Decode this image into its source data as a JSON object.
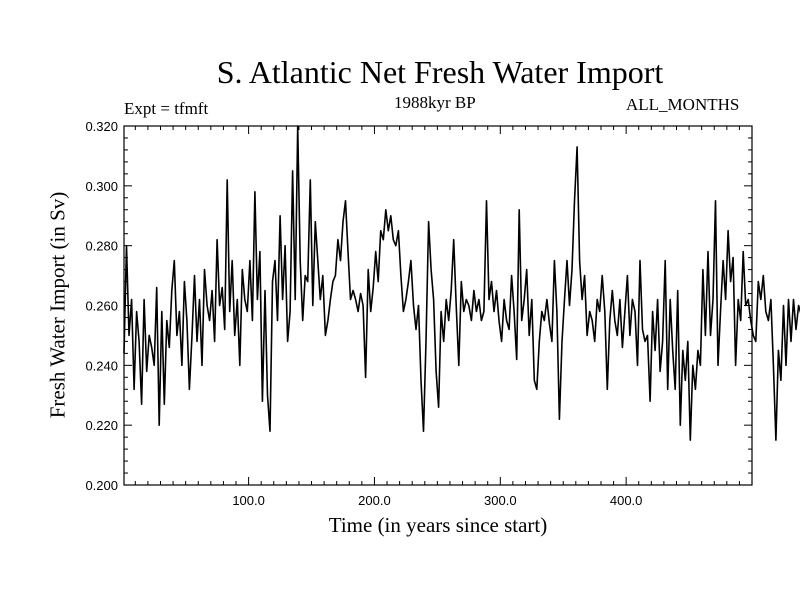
{
  "chart_data": {
    "type": "line",
    "title": "S. Atlantic Net Fresh Water Import",
    "subtitle": "1988kyr BP",
    "experiment_label": "Expt = tfmft",
    "period_label": "ALL_MONTHS",
    "xlabel": "Time (in years since start)",
    "ylabel": "Fresh Water Import (in Sv)",
    "xlim": [
      1,
      500
    ],
    "ylim": [
      0.2,
      0.32
    ],
    "x_ticks": [
      100,
      200,
      300,
      400
    ],
    "x_tick_labels": [
      "100.0",
      "200.0",
      "300.0",
      "400.0"
    ],
    "y_ticks": [
      0.2,
      0.22,
      0.24,
      0.26,
      0.28,
      0.3,
      0.32
    ],
    "y_tick_labels": [
      "0.200",
      "0.220",
      "0.240",
      "0.260",
      "0.280",
      "0.300",
      "0.320"
    ],
    "series": [
      {
        "name": "Net fresh water import",
        "x_start": 1,
        "x_step": 2,
        "y": [
          0.244,
          0.28,
          0.25,
          0.262,
          0.232,
          0.258,
          0.248,
          0.227,
          0.262,
          0.238,
          0.25,
          0.246,
          0.24,
          0.266,
          0.22,
          0.258,
          0.227,
          0.255,
          0.246,
          0.265,
          0.275,
          0.25,
          0.258,
          0.24,
          0.268,
          0.255,
          0.232,
          0.25,
          0.27,
          0.248,
          0.262,
          0.24,
          0.272,
          0.26,
          0.255,
          0.265,
          0.248,
          0.282,
          0.26,
          0.266,
          0.252,
          0.302,
          0.258,
          0.275,
          0.25,
          0.262,
          0.24,
          0.272,
          0.262,
          0.258,
          0.275,
          0.255,
          0.298,
          0.262,
          0.278,
          0.228,
          0.265,
          0.23,
          0.218,
          0.268,
          0.275,
          0.255,
          0.29,
          0.262,
          0.28,
          0.248,
          0.258,
          0.305,
          0.262,
          0.32,
          0.275,
          0.255,
          0.27,
          0.268,
          0.302,
          0.26,
          0.288,
          0.275,
          0.262,
          0.27,
          0.25,
          0.255,
          0.262,
          0.268,
          0.27,
          0.282,
          0.275,
          0.288,
          0.295,
          0.278,
          0.262,
          0.265,
          0.262,
          0.258,
          0.264,
          0.26,
          0.236,
          0.272,
          0.258,
          0.266,
          0.278,
          0.268,
          0.285,
          0.282,
          0.292,
          0.285,
          0.29,
          0.282,
          0.28,
          0.285,
          0.27,
          0.258,
          0.262,
          0.268,
          0.275,
          0.26,
          0.252,
          0.26,
          0.235,
          0.218,
          0.248,
          0.288,
          0.272,
          0.262,
          0.238,
          0.226,
          0.258,
          0.248,
          0.262,
          0.255,
          0.265,
          0.282,
          0.26,
          0.24,
          0.268,
          0.258,
          0.262,
          0.26,
          0.255,
          0.265,
          0.258,
          0.262,
          0.255,
          0.258,
          0.295,
          0.262,
          0.268,
          0.258,
          0.265,
          0.255,
          0.248,
          0.262,
          0.255,
          0.252,
          0.27,
          0.258,
          0.242,
          0.292,
          0.255,
          0.262,
          0.272,
          0.25,
          0.262,
          0.235,
          0.232,
          0.248,
          0.258,
          0.255,
          0.262,
          0.254,
          0.248,
          0.275,
          0.258,
          0.222,
          0.248,
          0.262,
          0.275,
          0.26,
          0.272,
          0.295,
          0.313,
          0.275,
          0.262,
          0.27,
          0.25,
          0.258,
          0.255,
          0.248,
          0.262,
          0.258,
          0.27,
          0.258,
          0.232,
          0.255,
          0.265,
          0.255,
          0.25,
          0.262,
          0.246,
          0.258,
          0.27,
          0.25,
          0.262,
          0.258,
          0.24,
          0.275,
          0.252,
          0.248,
          0.25,
          0.228,
          0.258,
          0.245,
          0.262,
          0.238,
          0.248,
          0.275,
          0.232,
          0.262,
          0.245,
          0.232,
          0.265,
          0.22,
          0.245,
          0.235,
          0.248,
          0.215,
          0.24,
          0.232,
          0.245,
          0.24,
          0.272,
          0.25,
          0.278,
          0.25,
          0.262,
          0.295,
          0.24,
          0.258,
          0.275,
          0.262,
          0.285,
          0.268,
          0.276,
          0.24,
          0.262,
          0.255,
          0.278,
          0.26,
          0.262,
          0.255,
          0.25,
          0.248,
          0.268,
          0.262,
          0.27,
          0.258,
          0.255,
          0.262,
          0.24,
          0.215,
          0.245,
          0.235,
          0.26,
          0.24,
          0.262,
          0.248,
          0.262,
          0.252,
          0.26,
          0.257,
          0.264,
          0.25,
          0.262,
          0.27,
          0.262,
          0.292,
          0.27,
          0.268,
          0.258,
          0.28,
          0.265,
          0.262,
          0.31,
          0.28,
          0.26,
          0.265,
          0.285,
          0.27,
          0.282,
          0.275,
          0.288,
          0.285,
          0.3,
          0.28,
          0.275,
          0.285,
          0.272,
          0.265,
          0.262,
          0.276,
          0.268,
          0.26,
          0.265,
          0.262,
          0.268,
          0.266,
          0.285,
          0.262,
          0.275,
          0.262,
          0.266,
          0.262,
          0.26,
          0.248,
          0.262,
          0.265,
          0.256,
          0.262,
          0.24,
          0.27,
          0.262,
          0.252,
          0.218,
          0.25,
          0.238,
          0.248,
          0.222,
          0.26,
          0.242,
          0.238,
          0.225,
          0.252,
          0.248,
          0.262,
          0.24,
          0.245,
          0.258,
          0.25,
          0.265,
          0.242,
          0.27,
          0.26,
          0.248,
          0.255,
          0.262,
          0.25,
          0.258,
          0.265,
          0.282,
          0.262,
          0.238,
          0.26,
          0.25,
          0.265,
          0.248,
          0.262,
          0.255,
          0.262,
          0.268,
          0.258,
          0.23,
          0.258,
          0.272,
          0.262,
          0.275,
          0.265,
          0.238,
          0.255,
          0.262,
          0.25,
          0.245,
          0.258,
          0.25,
          0.262,
          0.24,
          0.218,
          0.265,
          0.262,
          0.28,
          0.262,
          0.258,
          0.245,
          0.262,
          0.25,
          0.26,
          0.255,
          0.252,
          0.26,
          0.265,
          0.25,
          0.258,
          0.264,
          0.252,
          0.26,
          0.256,
          0.262,
          0.25,
          0.255,
          0.258,
          0.262,
          0.265,
          0.25,
          0.265,
          0.258,
          0.262,
          0.248,
          0.265,
          0.228,
          0.26,
          0.252,
          0.258,
          0.262,
          0.255,
          0.268,
          0.24,
          0.256,
          0.26,
          0.245,
          0.262,
          0.25,
          0.255,
          0.282,
          0.26,
          0.265,
          0.275,
          0.262,
          0.258,
          0.245,
          0.296,
          0.252,
          0.262,
          0.282,
          0.258,
          0.245,
          0.265,
          0.245,
          0.22,
          0.275,
          0.258,
          0.262,
          0.288,
          0.265,
          0.258,
          0.255,
          0.24,
          0.262,
          0.238,
          0.258,
          0.25,
          0.262,
          0.258,
          0.255,
          0.262,
          0.258
        ]
      }
    ]
  }
}
